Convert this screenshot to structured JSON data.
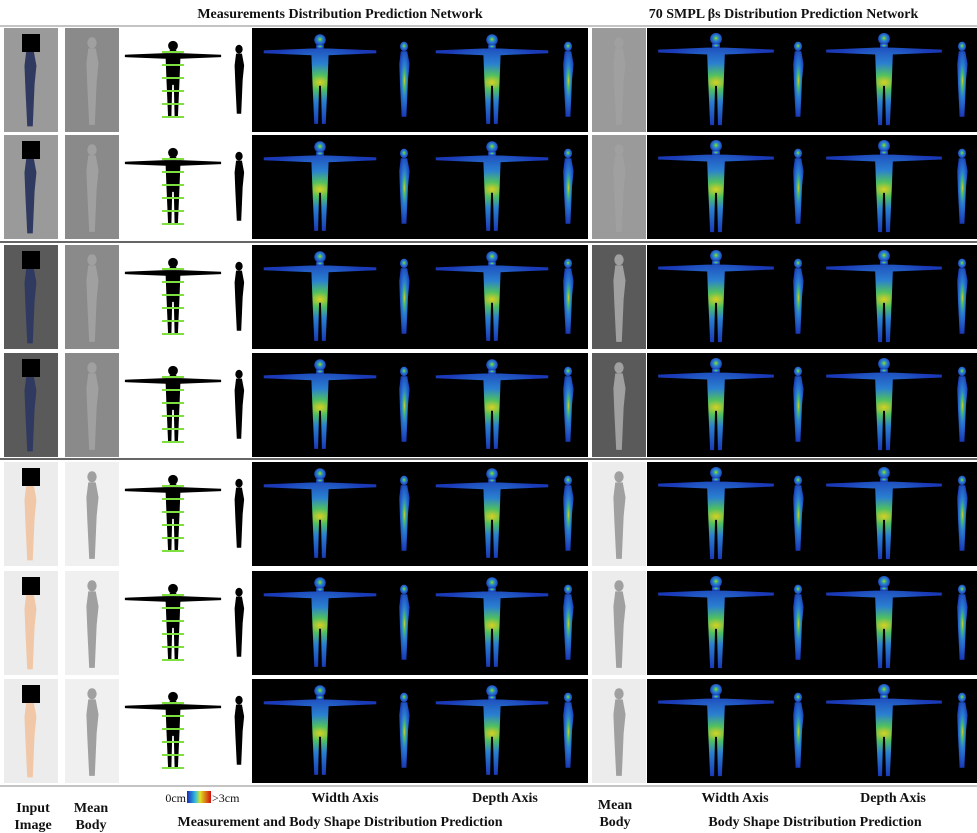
{
  "header": {
    "left_title": "Measurements Distribution Prediction Network",
    "right_title": "70 SMPL βs Distribution Prediction Network"
  },
  "footer": {
    "input_image": "Input Image",
    "mean_body_left": "Mean Body",
    "colorbar_min": "0cm",
    "colorbar_max": ">3cm",
    "width_axis_left": "Width Axis",
    "depth_axis_left": "Depth Axis",
    "left_caption": "Measurement and Body Shape Distribution Prediction",
    "mean_body_right": "Mean Body",
    "width_axis_right": "Width Axis",
    "depth_axis_right": "Depth Axis",
    "right_caption": "Body Shape Distribution Prediction"
  }
}
